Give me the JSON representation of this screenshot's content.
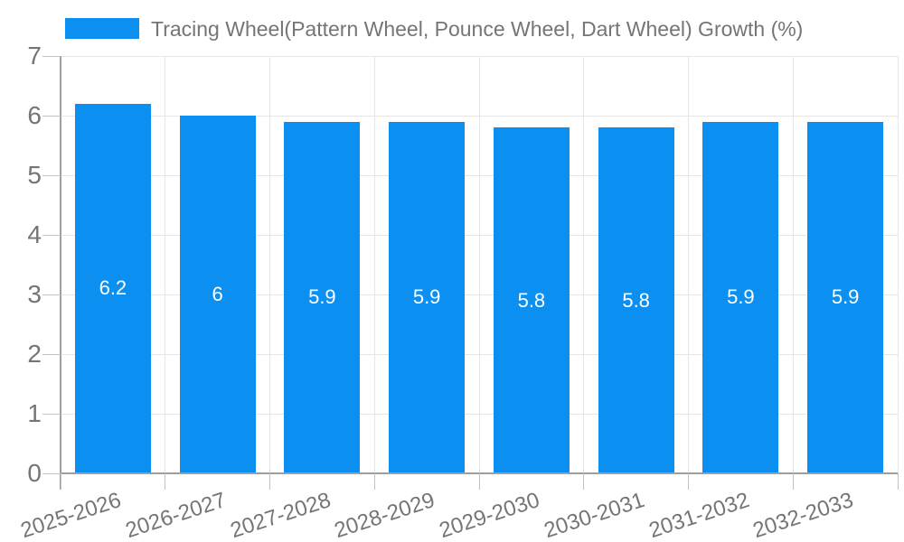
{
  "chart_data": {
    "type": "bar",
    "title": "Tracing Wheel(Pattern Wheel, Pounce Wheel, Dart Wheel) Growth (%)",
    "categories": [
      "2025-2026",
      "2026-2027",
      "2027-2028",
      "2028-2029",
      "2029-2030",
      "2030-2031",
      "2031-2032",
      "2032-2033"
    ],
    "values": [
      6.2,
      6,
      5.9,
      5.9,
      5.8,
      5.8,
      5.9,
      5.9
    ],
    "value_labels": [
      "6.2",
      "6",
      "5.9",
      "5.9",
      "5.8",
      "5.8",
      "5.9",
      "5.9"
    ],
    "xlabel": "",
    "ylabel": "",
    "ylim": [
      0,
      7
    ],
    "yticks": [
      0,
      1,
      2,
      3,
      4,
      5,
      6,
      7
    ],
    "grid": true,
    "legend_position": "top-left",
    "bar_color": "#0b90f1",
    "value_label_color": "#ffffff",
    "axis_label_color": "#757575",
    "gridline_color": "#e6e6e6",
    "tick_color": "#c2c2c2",
    "axis_line_color": "#9e9e9e",
    "background_color": "#ffffff"
  }
}
